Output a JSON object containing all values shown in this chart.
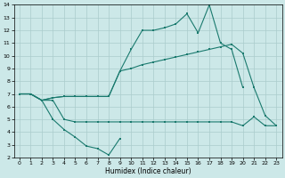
{
  "xlabel": "Humidex (Indice chaleur)",
  "bg_color": "#cce8e8",
  "grid_color": "#aacccc",
  "line_color": "#1a7a6e",
  "xlim": [
    -0.5,
    23.5
  ],
  "ylim": [
    2,
    14
  ],
  "xticks": [
    0,
    1,
    2,
    3,
    4,
    5,
    6,
    7,
    8,
    9,
    10,
    11,
    12,
    13,
    14,
    15,
    16,
    17,
    18,
    19,
    20,
    21,
    22,
    23
  ],
  "yticks": [
    2,
    3,
    4,
    5,
    6,
    7,
    8,
    9,
    10,
    11,
    12,
    13,
    14
  ],
  "series": {
    "line1_x": [
      0,
      1,
      2,
      3,
      4,
      5,
      6,
      7,
      8,
      9
    ],
    "line1_y": [
      7.0,
      7.0,
      6.5,
      5.0,
      4.2,
      3.6,
      2.9,
      2.7,
      2.2,
      3.5
    ],
    "line2_x": [
      0,
      1,
      2,
      3,
      4,
      5,
      6,
      7,
      8,
      9,
      10,
      11,
      12,
      13,
      14,
      15,
      16,
      17,
      18,
      19,
      20,
      21,
      22,
      23
    ],
    "line2_y": [
      7.0,
      7.0,
      6.5,
      6.5,
      5.0,
      4.8,
      4.8,
      4.8,
      4.8,
      4.8,
      4.8,
      4.8,
      4.8,
      4.8,
      4.8,
      4.8,
      4.8,
      4.8,
      4.8,
      4.8,
      4.5,
      5.2,
      4.5,
      4.5
    ],
    "line3_x": [
      0,
      1,
      2,
      3,
      4,
      5,
      6,
      7,
      8,
      9,
      10,
      11,
      12,
      13,
      14,
      15,
      16,
      17,
      18,
      19,
      20,
      21,
      22,
      23
    ],
    "line3_y": [
      7.0,
      7.0,
      6.5,
      6.7,
      6.8,
      6.8,
      6.8,
      6.8,
      6.8,
      8.8,
      9.0,
      9.3,
      9.5,
      9.7,
      9.9,
      10.1,
      10.3,
      10.5,
      10.7,
      10.9,
      10.2,
      7.5,
      5.3,
      4.5
    ],
    "line4_x": [
      0,
      1,
      2,
      3,
      4,
      5,
      6,
      7,
      8,
      9,
      10,
      11,
      12,
      13,
      14,
      15,
      16,
      17,
      18,
      19,
      20
    ],
    "line4_y": [
      7.0,
      7.0,
      6.5,
      6.7,
      6.8,
      6.8,
      6.8,
      6.8,
      6.8,
      8.8,
      10.5,
      12.0,
      12.0,
      12.2,
      12.5,
      13.3,
      11.8,
      14.0,
      11.0,
      10.5,
      7.5
    ]
  }
}
